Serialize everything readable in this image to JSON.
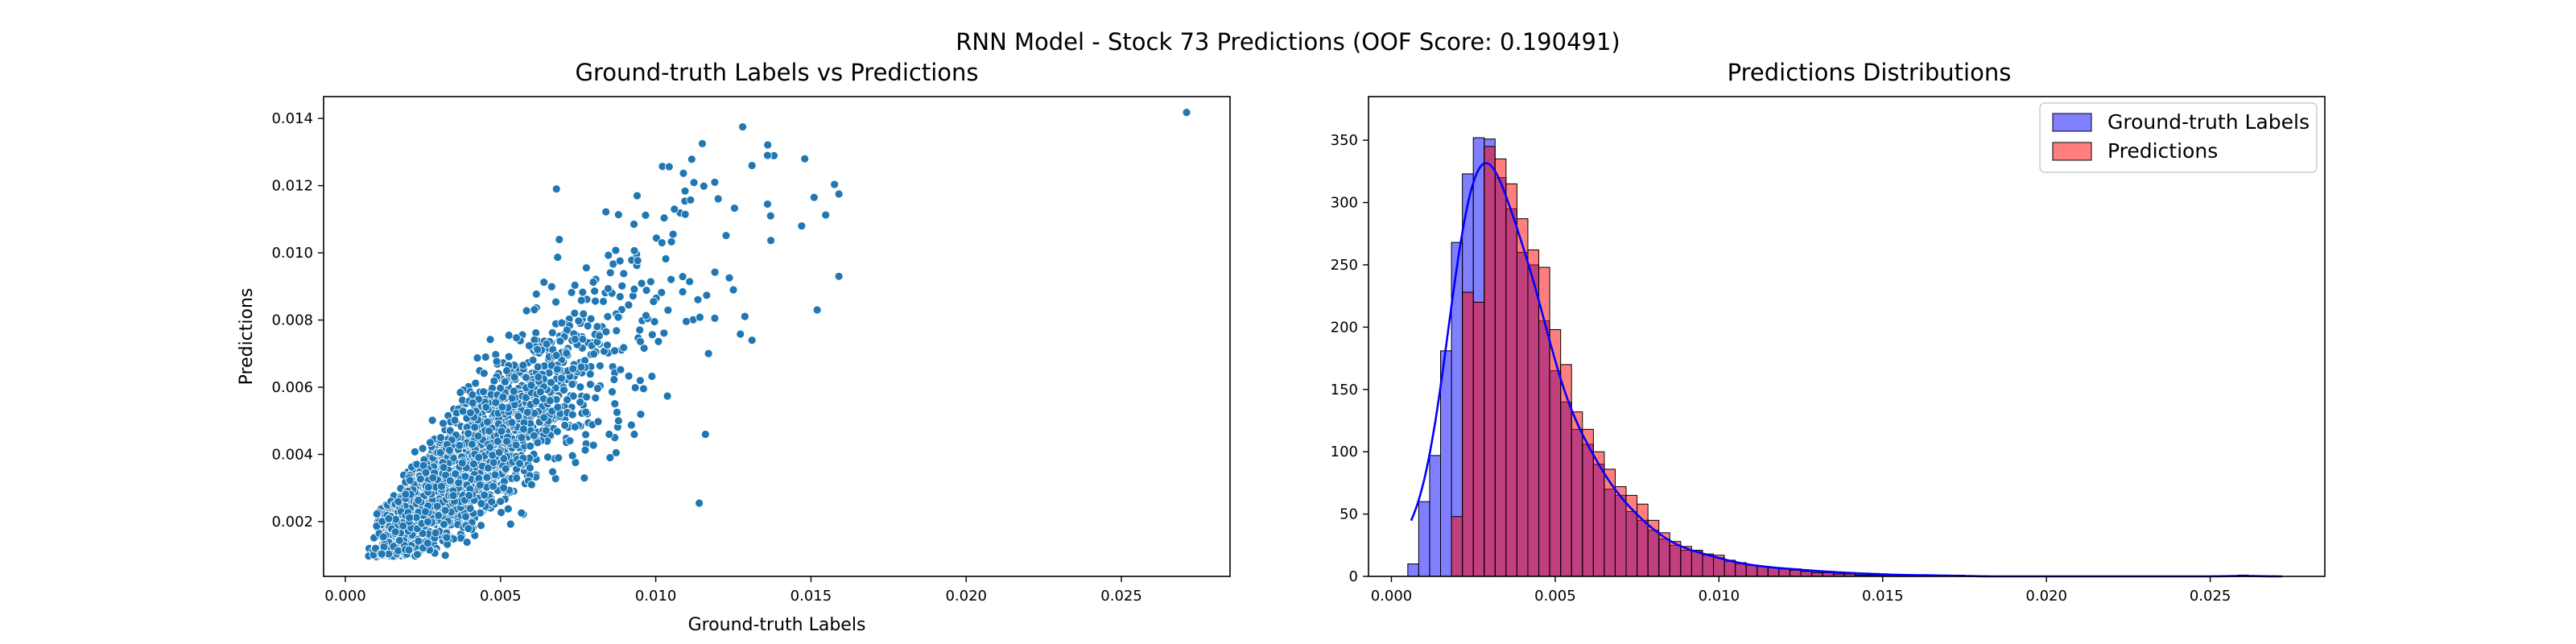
{
  "figure": {
    "suptitle": "RNN Model - Stock 73 Predictions (OOF Score: 0.190491)"
  },
  "chart_data": [
    {
      "type": "scatter",
      "title": "Ground-truth Labels vs Predictions",
      "xlabel": "Ground-truth Labels",
      "ylabel": "Predictions",
      "xlim": [
        -0.0007,
        0.0285
      ],
      "ylim": [
        0.00037,
        0.01465
      ],
      "xticks": [
        "0.000",
        "0.005",
        "0.010",
        "0.015",
        "0.020",
        "0.025"
      ],
      "yticks": [
        "0.002",
        "0.004",
        "0.006",
        "0.008",
        "0.010",
        "0.012",
        "0.014"
      ],
      "color": "#1f77b4",
      "grid": false,
      "points_note": "dense cloud from x≈0.0007 to 0.016; y≈0.001 to 0.0138; roughly 3000+ points",
      "points": [
        [
          0.0271,
          0.01418
        ],
        [
          0.0128,
          0.01375
        ],
        [
          0.0115,
          0.01325
        ],
        [
          0.0136,
          0.0129
        ],
        [
          0.0148,
          0.0128
        ],
        [
          0.0131,
          0.0126
        ],
        [
          0.0119,
          0.0121
        ],
        [
          0.0159,
          0.01175
        ],
        [
          0.0151,
          0.01165
        ],
        [
          0.0136,
          0.01145
        ],
        [
          0.0068,
          0.0119
        ],
        [
          0.0094,
          0.0117
        ],
        [
          0.0106,
          0.0113
        ],
        [
          0.0137,
          0.0111
        ],
        [
          0.0147,
          0.0108
        ],
        [
          0.0159,
          0.0093
        ],
        [
          0.0152,
          0.0083
        ],
        [
          0.0131,
          0.0074
        ],
        [
          0.0117,
          0.007
        ],
        [
          0.0076,
          0.0066
        ],
        [
          0.0085,
          0.0046
        ],
        [
          0.0116,
          0.0046
        ],
        [
          0.0114,
          0.00255
        ],
        [
          0.0088,
          0.005
        ],
        [
          0.0077,
          0.0033
        ],
        [
          0.0125,
          0.0089
        ],
        [
          0.0102,
          0.0103
        ],
        [
          0.0095,
          0.0062
        ],
        [
          0.006,
          0.0031
        ],
        [
          0.005,
          0.0026
        ]
      ]
    },
    {
      "type": "histogram",
      "title": "Predictions Distributions",
      "xlabel": "",
      "ylabel": "",
      "xlim": [
        -0.0007,
        0.0285
      ],
      "ylim": [
        0,
        385
      ],
      "xticks": [
        "0.000",
        "0.005",
        "0.010",
        "0.015",
        "0.020",
        "0.025"
      ],
      "yticks": [
        "0",
        "50",
        "100",
        "150",
        "200",
        "250",
        "300",
        "350"
      ],
      "legend_position": "top-right",
      "bin_start": 0.0005,
      "bin_width": 0.0003333,
      "series": [
        {
          "name": "Ground-truth Labels",
          "color": "#0000ff",
          "kde": true,
          "counts": [
            10,
            60,
            97,
            181,
            268,
            323,
            352,
            351,
            320,
            295,
            260,
            250,
            205,
            165,
            140,
            118,
            106,
            90,
            70,
            65,
            52,
            45,
            37,
            30,
            25,
            21,
            20,
            17,
            15,
            12,
            10,
            9,
            8,
            7,
            6,
            6,
            5,
            4,
            4,
            3,
            3,
            2,
            2,
            2,
            1,
            1,
            1,
            1,
            1,
            0,
            1,
            0,
            0,
            0,
            0,
            0,
            0,
            0,
            0,
            0,
            0,
            0,
            0,
            0,
            0,
            0,
            0,
            0,
            0,
            0,
            0,
            0,
            0,
            0,
            0,
            0,
            1,
            0,
            0,
            0
          ]
        },
        {
          "name": "Predictions",
          "color": "#ff0000",
          "kde": false,
          "counts": [
            0,
            0,
            0,
            0,
            48,
            228,
            220,
            345,
            335,
            315,
            287,
            262,
            248,
            198,
            170,
            132,
            118,
            100,
            86,
            72,
            65,
            58,
            45,
            35,
            28,
            24,
            21,
            18,
            17,
            13,
            11,
            9,
            8,
            7,
            6,
            5,
            4,
            3,
            3,
            2,
            2,
            1,
            1,
            1,
            1,
            0,
            0,
            0,
            0,
            0,
            0,
            0,
            0,
            0,
            0,
            0,
            0,
            0,
            0,
            0,
            0,
            0,
            0,
            0,
            0,
            0,
            0,
            0,
            0,
            0,
            0,
            0,
            0,
            0,
            0,
            0,
            1,
            0,
            0,
            0
          ]
        }
      ]
    }
  ]
}
